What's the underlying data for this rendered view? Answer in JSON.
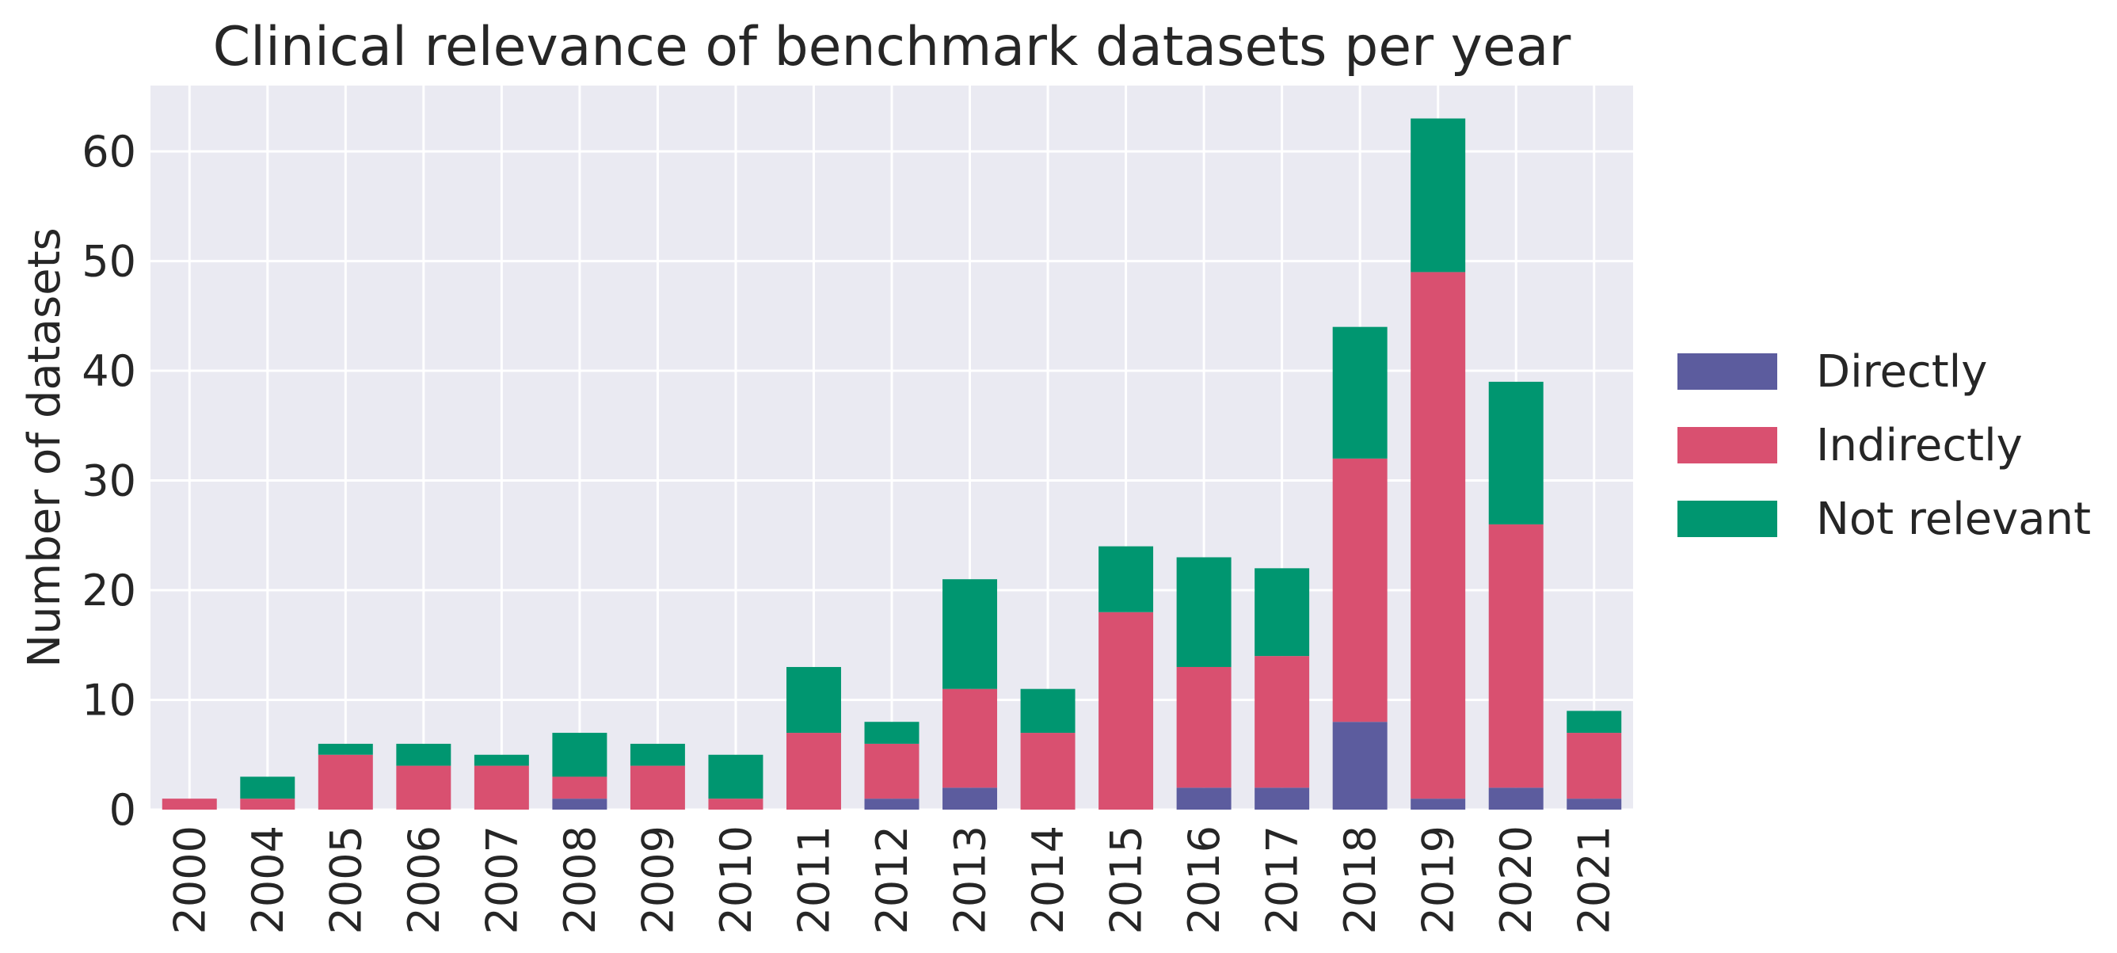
{
  "chart_data": {
    "type": "bar",
    "stacked": true,
    "title": "Clinical relevance of benchmark datasets per year",
    "xlabel": "",
    "ylabel": "Number of datasets",
    "categories": [
      "2000",
      "2004",
      "2005",
      "2006",
      "2007",
      "2008",
      "2009",
      "2010",
      "2011",
      "2012",
      "2013",
      "2014",
      "2015",
      "2016",
      "2017",
      "2018",
      "2019",
      "2020",
      "2021"
    ],
    "series": [
      {
        "name": "Directly",
        "color": "#5c5c9e",
        "values": [
          0,
          0,
          0,
          0,
          0,
          1,
          0,
          0,
          0,
          1,
          2,
          0,
          0,
          2,
          2,
          8,
          1,
          2,
          1
        ]
      },
      {
        "name": "Indirectly",
        "color": "#d95070",
        "values": [
          1,
          1,
          5,
          4,
          4,
          2,
          4,
          1,
          7,
          5,
          9,
          7,
          18,
          11,
          12,
          24,
          48,
          24,
          6
        ]
      },
      {
        "name": "Not relevant",
        "color": "#009670",
        "values": [
          0,
          2,
          1,
          2,
          1,
          4,
          2,
          4,
          6,
          2,
          10,
          4,
          6,
          10,
          8,
          12,
          14,
          13,
          2
        ]
      }
    ],
    "ylim": [
      0,
      66
    ],
    "yticks": [
      0,
      10,
      20,
      30,
      40,
      50,
      60
    ],
    "grid": true,
    "legend_position": "right",
    "background_color": "#eaeaf2",
    "grid_color": "#ffffff"
  }
}
